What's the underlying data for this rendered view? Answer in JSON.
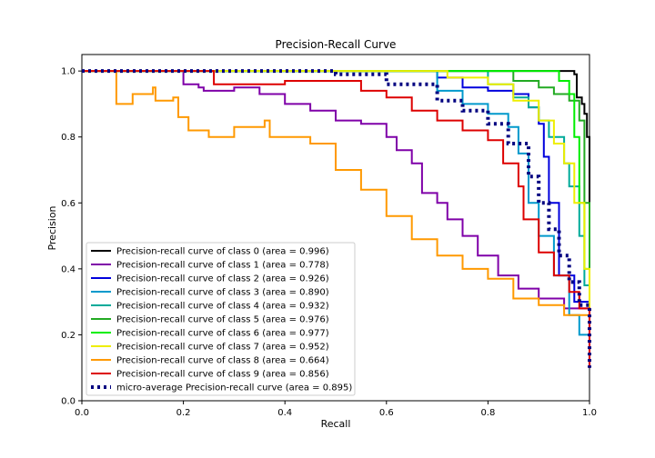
{
  "chart_data": {
    "type": "line",
    "title": "Precision-Recall Curve",
    "xlabel": "Recall",
    "ylabel": "Precision",
    "xlim": [
      0.0,
      1.0
    ],
    "ylim": [
      0.0,
      1.05
    ],
    "xticks": [
      "0.0",
      "0.2",
      "0.4",
      "0.6",
      "0.8",
      "1.0"
    ],
    "yticks": [
      "0.0",
      "0.2",
      "0.4",
      "0.6",
      "0.8",
      "1.0"
    ],
    "grid": false,
    "legend_position": "lower-left",
    "series": [
      {
        "name": "Precision-recall curve of class 0 (area = 0.996)",
        "color": "#000000",
        "style": "solid",
        "points": [
          [
            0,
            1.0
          ],
          [
            0.92,
            1.0
          ],
          [
            0.97,
            0.99
          ],
          [
            0.975,
            0.92
          ],
          [
            0.985,
            0.9
          ],
          [
            0.99,
            0.87
          ],
          [
            0.995,
            0.8
          ],
          [
            1.0,
            0.1
          ]
        ]
      },
      {
        "name": "Precision-recall curve of class 1 (area = 0.778)",
        "color": "#7f00a8",
        "style": "solid",
        "points": [
          [
            0,
            1.0
          ],
          [
            0.19,
            1.0
          ],
          [
            0.2,
            0.96
          ],
          [
            0.23,
            0.95
          ],
          [
            0.24,
            0.94
          ],
          [
            0.3,
            0.95
          ],
          [
            0.35,
            0.93
          ],
          [
            0.4,
            0.9
          ],
          [
            0.45,
            0.88
          ],
          [
            0.5,
            0.85
          ],
          [
            0.55,
            0.84
          ],
          [
            0.6,
            0.8
          ],
          [
            0.62,
            0.76
          ],
          [
            0.65,
            0.72
          ],
          [
            0.67,
            0.63
          ],
          [
            0.7,
            0.6
          ],
          [
            0.72,
            0.55
          ],
          [
            0.75,
            0.5
          ],
          [
            0.78,
            0.44
          ],
          [
            0.82,
            0.38
          ],
          [
            0.86,
            0.34
          ],
          [
            0.9,
            0.31
          ],
          [
            0.95,
            0.28
          ],
          [
            1.0,
            0.17
          ]
        ]
      },
      {
        "name": "Precision-recall curve of class 2 (area = 0.926)",
        "color": "#0000dd",
        "style": "solid",
        "points": [
          [
            0,
            1.0
          ],
          [
            0.6,
            1.0
          ],
          [
            0.7,
            0.98
          ],
          [
            0.75,
            0.95
          ],
          [
            0.8,
            0.94
          ],
          [
            0.85,
            0.93
          ],
          [
            0.88,
            0.89
          ],
          [
            0.9,
            0.84
          ],
          [
            0.91,
            0.74
          ],
          [
            0.92,
            0.6
          ],
          [
            0.94,
            0.38
          ],
          [
            0.97,
            0.3
          ],
          [
            1.0,
            0.17
          ]
        ]
      },
      {
        "name": "Precision-recall curve of class 3 (area = 0.890)",
        "color": "#0099cc",
        "style": "solid",
        "points": [
          [
            0,
            1.0
          ],
          [
            0.65,
            1.0
          ],
          [
            0.7,
            0.94
          ],
          [
            0.75,
            0.9
          ],
          [
            0.8,
            0.87
          ],
          [
            0.84,
            0.83
          ],
          [
            0.86,
            0.75
          ],
          [
            0.88,
            0.6
          ],
          [
            0.9,
            0.5
          ],
          [
            0.93,
            0.38
          ],
          [
            0.96,
            0.26
          ],
          [
            0.98,
            0.2
          ],
          [
            1.0,
            0.17
          ]
        ]
      },
      {
        "name": "Precision-recall curve of class 4 (area = 0.932)",
        "color": "#00aa99",
        "style": "solid",
        "points": [
          [
            0,
            1.0
          ],
          [
            0.75,
            1.0
          ],
          [
            0.8,
            0.96
          ],
          [
            0.85,
            0.92
          ],
          [
            0.88,
            0.89
          ],
          [
            0.9,
            0.85
          ],
          [
            0.92,
            0.8
          ],
          [
            0.95,
            0.72
          ],
          [
            0.96,
            0.65
          ],
          [
            0.98,
            0.5
          ],
          [
            0.99,
            0.35
          ],
          [
            1.0,
            0.15
          ]
        ]
      },
      {
        "name": "Precision-recall curve of class 5 (area = 0.976)",
        "color": "#22aa22",
        "style": "solid",
        "points": [
          [
            0,
            1.0
          ],
          [
            0.8,
            1.0
          ],
          [
            0.85,
            0.97
          ],
          [
            0.9,
            0.95
          ],
          [
            0.93,
            0.93
          ],
          [
            0.96,
            0.91
          ],
          [
            0.98,
            0.85
          ],
          [
            0.99,
            0.6
          ],
          [
            1.0,
            0.2
          ]
        ]
      },
      {
        "name": "Precision-recall curve of class 6 (area = 0.977)",
        "color": "#00ee00",
        "style": "solid",
        "points": [
          [
            0,
            1.0
          ],
          [
            0.92,
            1.0
          ],
          [
            0.94,
            0.97
          ],
          [
            0.96,
            0.93
          ],
          [
            0.97,
            0.8
          ],
          [
            0.98,
            0.6
          ],
          [
            0.99,
            0.4
          ],
          [
            1.0,
            0.3
          ]
        ]
      },
      {
        "name": "Precision-recall curve of class 7 (area = 0.952)",
        "color": "#eeee00",
        "style": "solid",
        "points": [
          [
            0,
            1.0
          ],
          [
            0.68,
            1.0
          ],
          [
            0.72,
            0.98
          ],
          [
            0.8,
            0.96
          ],
          [
            0.85,
            0.91
          ],
          [
            0.9,
            0.85
          ],
          [
            0.93,
            0.78
          ],
          [
            0.95,
            0.72
          ],
          [
            0.97,
            0.6
          ],
          [
            0.99,
            0.4
          ],
          [
            1.0,
            0.2
          ]
        ]
      },
      {
        "name": "Precision-recall curve of class 8 (area = 0.664)",
        "color": "#ff9900",
        "style": "solid",
        "points": [
          [
            0,
            1.0
          ],
          [
            0.065,
            1.0
          ],
          [
            0.068,
            0.9
          ],
          [
            0.1,
            0.93
          ],
          [
            0.14,
            0.95
          ],
          [
            0.145,
            0.91
          ],
          [
            0.18,
            0.92
          ],
          [
            0.19,
            0.86
          ],
          [
            0.21,
            0.82
          ],
          [
            0.25,
            0.8
          ],
          [
            0.3,
            0.83
          ],
          [
            0.36,
            0.85
          ],
          [
            0.37,
            0.8
          ],
          [
            0.45,
            0.78
          ],
          [
            0.5,
            0.7
          ],
          [
            0.55,
            0.64
          ],
          [
            0.6,
            0.56
          ],
          [
            0.65,
            0.49
          ],
          [
            0.7,
            0.44
          ],
          [
            0.75,
            0.4
          ],
          [
            0.8,
            0.37
          ],
          [
            0.85,
            0.31
          ],
          [
            0.9,
            0.29
          ],
          [
            0.95,
            0.26
          ],
          [
            1.0,
            0.22
          ]
        ]
      },
      {
        "name": "Precision-recall curve of class 9 (area = 0.856)",
        "color": "#dd0000",
        "style": "solid",
        "points": [
          [
            0,
            1.0
          ],
          [
            0.22,
            1.0
          ],
          [
            0.26,
            0.96
          ],
          [
            0.4,
            0.97
          ],
          [
            0.55,
            0.94
          ],
          [
            0.6,
            0.92
          ],
          [
            0.65,
            0.88
          ],
          [
            0.7,
            0.85
          ],
          [
            0.75,
            0.82
          ],
          [
            0.8,
            0.79
          ],
          [
            0.83,
            0.72
          ],
          [
            0.86,
            0.65
          ],
          [
            0.87,
            0.55
          ],
          [
            0.9,
            0.45
          ],
          [
            0.93,
            0.38
          ],
          [
            0.96,
            0.33
          ],
          [
            0.98,
            0.28
          ],
          [
            1.0,
            0.1
          ]
        ]
      },
      {
        "name": "micro-average Precision-recall curve (area = 0.895)",
        "color": "#000080",
        "style": "dotted",
        "points": [
          [
            0,
            1.0
          ],
          [
            0.4,
            1.0
          ],
          [
            0.5,
            0.99
          ],
          [
            0.6,
            0.96
          ],
          [
            0.7,
            0.91
          ],
          [
            0.75,
            0.88
          ],
          [
            0.8,
            0.84
          ],
          [
            0.84,
            0.78
          ],
          [
            0.88,
            0.68
          ],
          [
            0.9,
            0.6
          ],
          [
            0.92,
            0.52
          ],
          [
            0.94,
            0.44
          ],
          [
            0.96,
            0.36
          ],
          [
            0.98,
            0.29
          ],
          [
            1.0,
            0.1
          ]
        ]
      }
    ]
  }
}
